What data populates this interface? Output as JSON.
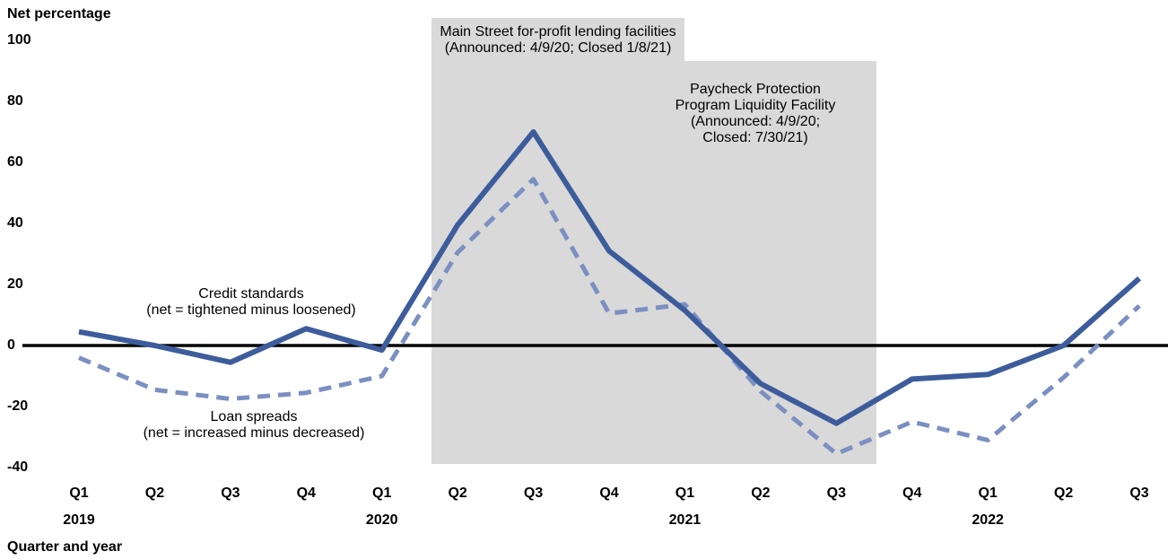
{
  "chart_data": {
    "type": "line",
    "ylabel": "Net percentage",
    "xlabel": "Quarter and year",
    "categories": [
      "Q1",
      "Q2",
      "Q3",
      "Q4",
      "Q1",
      "Q2",
      "Q3",
      "Q4",
      "Q1",
      "Q2",
      "Q3",
      "Q4",
      "Q1",
      "Q2",
      "Q3"
    ],
    "years": [
      "2019",
      null,
      null,
      null,
      "2020",
      null,
      null,
      null,
      "2021",
      null,
      null,
      null,
      "2022",
      null,
      null
    ],
    "ylim": [
      -40,
      100
    ],
    "yticks": [
      -40,
      -20,
      0,
      20,
      40,
      60,
      80,
      100
    ],
    "zero_line": true,
    "series": [
      {
        "name": "Credit standards",
        "note": "(net = tightened minus loosened)",
        "color": "#3d5c9c",
        "dashed": false,
        "values": [
          4.5,
          0,
          -5.5,
          5.5,
          -1.5,
          39.5,
          70,
          31,
          11.5,
          -12.5,
          -25.5,
          -11,
          -9.5,
          0,
          22
        ]
      },
      {
        "name": "Loan spreads",
        "note": "(net = increased minus decreased)",
        "color": "#7c8fc2",
        "dashed": true,
        "values": [
          -4,
          -14.5,
          -17.5,
          -15.5,
          -10,
          30.5,
          54.5,
          10.5,
          13.5,
          -15,
          -35.5,
          -25,
          -31,
          -10.5,
          13
        ]
      }
    ],
    "annotations": [
      [
        "Main Street for-profit lending facilities",
        "(Announced: 4/9/20; Closed 1/8/21)"
      ],
      [
        "Paycheck Protection",
        "Program Liquidity Facility",
        "(Announced: 4/9/20;",
        "Closed: 7/30/21)"
      ]
    ]
  }
}
